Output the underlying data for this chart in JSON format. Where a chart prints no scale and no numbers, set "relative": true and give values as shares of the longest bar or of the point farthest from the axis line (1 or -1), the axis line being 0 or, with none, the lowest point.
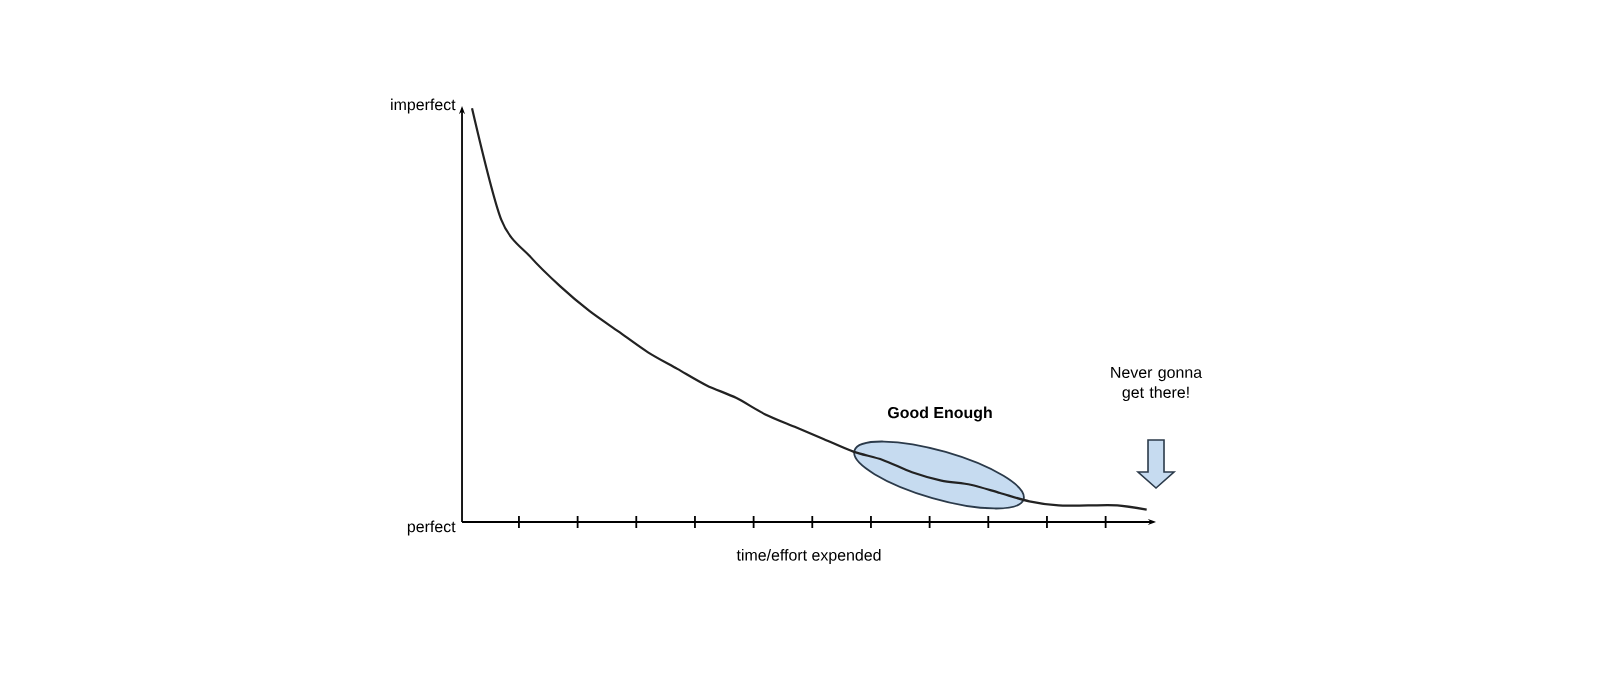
{
  "chart_data": {
    "type": "line",
    "relative": true,
    "xlabel": "time/effort expended",
    "color": "#222222",
    "categories": [
      null,
      null,
      null,
      null,
      null,
      null,
      null,
      null,
      null,
      null,
      null,
      null,
      null,
      null,
      null,
      null,
      null,
      null,
      null,
      null,
      null,
      null,
      null,
      null
    ],
    "values": [
      1,
      0.73,
      0.64,
      0.57,
      0.51,
      0.46,
      0.41,
      0.37,
      0.33,
      0.3,
      0.26,
      0.23,
      0.2,
      0.17,
      0.15,
      0.12,
      0.1,
      0.09,
      0.07,
      0.05,
      0.04,
      0.04,
      0.04,
      0.03
    ],
    "annotations": [
      "imperfect",
      "perfect",
      "**Good Enough**",
      "Never gonna get there!"
    ]
  }
}
